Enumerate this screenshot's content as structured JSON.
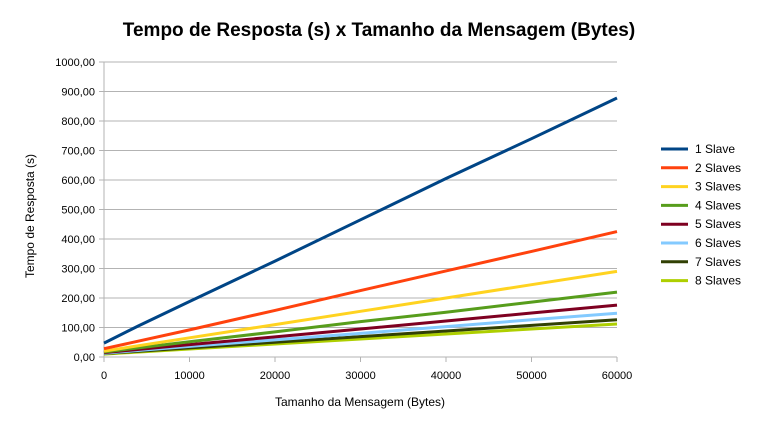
{
  "chart_data": {
    "type": "line",
    "title": "Tempo de Resposta (s) x Tamanho da Mensagem (Bytes)",
    "xlabel": "Tamanho da Mensagem (Bytes)",
    "ylabel": "Tempo de Resposta (s)",
    "xlim": [
      0,
      60000
    ],
    "ylim": [
      0,
      1000
    ],
    "x_ticks": [
      "0",
      "10000",
      "20000",
      "30000",
      "40000",
      "50000",
      "60000"
    ],
    "y_ticks": [
      "0,00",
      "100,00",
      "200,00",
      "300,00",
      "400,00",
      "500,00",
      "600,00",
      "700,00",
      "800,00",
      "900,00",
      "1000,00"
    ],
    "grid": "horizontal",
    "legend_position": "right",
    "series": [
      {
        "name": "1 Slave",
        "color": "#004586",
        "points": [
          [
            0,
            47
          ],
          [
            4000,
            105
          ],
          [
            10000,
            188
          ],
          [
            20000,
            325
          ],
          [
            30000,
            465
          ],
          [
            40000,
            605
          ],
          [
            50000,
            740
          ],
          [
            60000,
            878
          ]
        ]
      },
      {
        "name": "2 Slaves",
        "color": "#ff420e",
        "points": [
          [
            0,
            28
          ],
          [
            10000,
            92
          ],
          [
            20000,
            158
          ],
          [
            30000,
            225
          ],
          [
            40000,
            292
          ],
          [
            50000,
            358
          ],
          [
            60000,
            425
          ]
        ]
      },
      {
        "name": "3 Slaves",
        "color": "#ffd320",
        "points": [
          [
            0,
            20
          ],
          [
            10000,
            65
          ],
          [
            20000,
            110
          ],
          [
            30000,
            155
          ],
          [
            40000,
            200
          ],
          [
            50000,
            245
          ],
          [
            60000,
            290
          ]
        ]
      },
      {
        "name": "4 Slaves",
        "color": "#579d1c",
        "points": [
          [
            0,
            17
          ],
          [
            10000,
            52
          ],
          [
            20000,
            85
          ],
          [
            30000,
            120
          ],
          [
            40000,
            152
          ],
          [
            50000,
            186
          ],
          [
            60000,
            220
          ]
        ]
      },
      {
        "name": "5 Slaves",
        "color": "#7e0021",
        "points": [
          [
            0,
            15
          ],
          [
            10000,
            42
          ],
          [
            20000,
            68
          ],
          [
            30000,
            95
          ],
          [
            40000,
            122
          ],
          [
            50000,
            149
          ],
          [
            60000,
            176
          ]
        ]
      },
      {
        "name": "6 Slaves",
        "color": "#83caff",
        "points": [
          [
            0,
            13
          ],
          [
            10000,
            36
          ],
          [
            20000,
            58
          ],
          [
            30000,
            80
          ],
          [
            40000,
            103
          ],
          [
            50000,
            126
          ],
          [
            60000,
            148
          ]
        ]
      },
      {
        "name": "7 Slaves",
        "color": "#314004",
        "points": [
          [
            0,
            12
          ],
          [
            10000,
            31
          ],
          [
            20000,
            50
          ],
          [
            30000,
            69
          ],
          [
            40000,
            88
          ],
          [
            50000,
            107
          ],
          [
            60000,
            126
          ]
        ]
      },
      {
        "name": "8 Slaves",
        "color": "#aecf00",
        "points": [
          [
            0,
            10
          ],
          [
            10000,
            27
          ],
          [
            20000,
            44
          ],
          [
            30000,
            61
          ],
          [
            40000,
            78
          ],
          [
            50000,
            95
          ],
          [
            60000,
            112
          ]
        ]
      }
    ]
  }
}
